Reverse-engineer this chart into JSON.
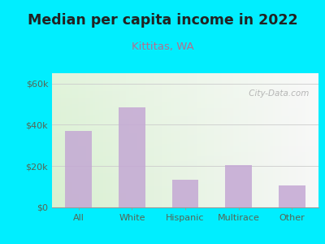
{
  "title": "Median per capita income in 2022",
  "subtitle": "Kittitas, WA",
  "categories": [
    "All",
    "White",
    "Hispanic",
    "Multirace",
    "Other"
  ],
  "values": [
    37000,
    48500,
    13500,
    20500,
    10500
  ],
  "bar_color": "#c4a8d4",
  "title_fontsize": 12.5,
  "subtitle_fontsize": 9.5,
  "subtitle_color": "#b07090",
  "title_color": "#222222",
  "yticks": [
    0,
    20000,
    40000,
    60000
  ],
  "ytick_labels": [
    "$0",
    "$20k",
    "$40k",
    "$60k"
  ],
  "ylim": [
    0,
    65000
  ],
  "bg_outer": "#00eeff",
  "watermark": " City-Data.com",
  "watermark_color": "#aaaaaa",
  "tick_label_color": "#556655"
}
